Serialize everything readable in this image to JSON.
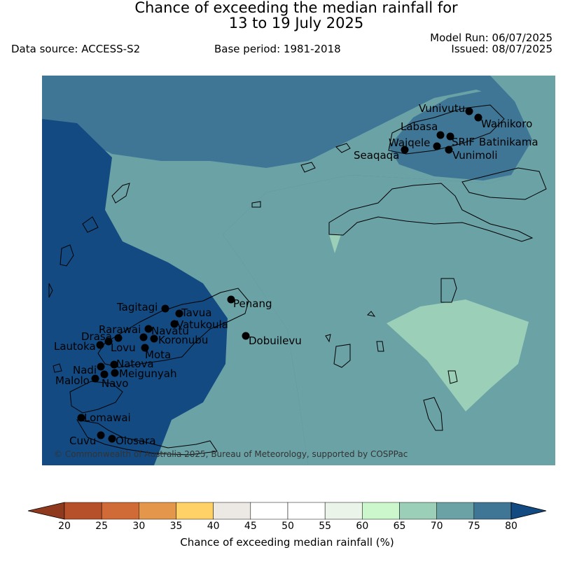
{
  "header": {
    "title_line1": "Chance of exceeding the median rainfall for",
    "title_line2": "13 to 19 July 2025",
    "data_source": "Data source: ACCESS-S2",
    "base_period": "Base period: 1981-2018",
    "model_run": "Model Run: 06/07/2025",
    "issued": "Issued: 08/07/2025"
  },
  "map": {
    "credit": "© Commonwealth of Australia 2025, Bureau of Meteorology, supported by COSPPac",
    "sites": [
      {
        "name": "Vunivutu"
      },
      {
        "name": "Wainikoro"
      },
      {
        "name": "Labasa"
      },
      {
        "name": "SRIF"
      },
      {
        "name": "Batinikama"
      },
      {
        "name": "Waiqele"
      },
      {
        "name": "Vunimoli"
      },
      {
        "name": "Seaqaqa"
      },
      {
        "name": "Penang"
      },
      {
        "name": "Tagitagi"
      },
      {
        "name": "Tavua"
      },
      {
        "name": "Vatukoula"
      },
      {
        "name": "Rarawai"
      },
      {
        "name": "Navatu"
      },
      {
        "name": "Drasa"
      },
      {
        "name": "Koronubu"
      },
      {
        "name": "Lautoka"
      },
      {
        "name": "Lovu"
      },
      {
        "name": "Mota"
      },
      {
        "name": "Dobuilevu"
      },
      {
        "name": "Natova"
      },
      {
        "name": "Nadi"
      },
      {
        "name": "Meigunyah"
      },
      {
        "name": "Malolo"
      },
      {
        "name": "Navo"
      },
      {
        "name": "Lomawai"
      },
      {
        "name": "Cuvu"
      },
      {
        "name": "Olosara"
      }
    ]
  },
  "colorbar": {
    "title": "Chance of exceeding median rainfall (%)",
    "ticks": [
      "20",
      "25",
      "30",
      "35",
      "40",
      "45",
      "50",
      "55",
      "60",
      "65",
      "70",
      "75",
      "80"
    ],
    "colors": [
      "#8f3a1e",
      "#b5502a",
      "#d06a36",
      "#e4974a",
      "#ffd166",
      "#ece8e4",
      "#ffffff",
      "#ffffff",
      "#eaf4e8",
      "#ccf7cc",
      "#9bcfb7",
      "#6aa2a6",
      "#3f7696",
      "#134a82"
    ]
  }
}
